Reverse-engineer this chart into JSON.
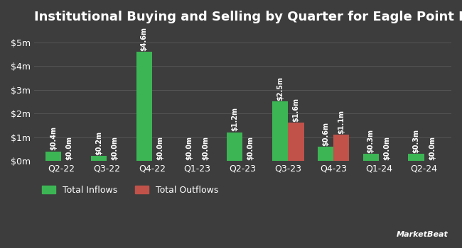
{
  "title": "Institutional Buying and Selling by Quarter for Eagle Point Income",
  "quarters": [
    "Q2-22",
    "Q3-22",
    "Q4-22",
    "Q1-23",
    "Q2-23",
    "Q3-23",
    "Q4-23",
    "Q1-24",
    "Q2-24"
  ],
  "inflows": [
    0.4,
    0.2,
    4.6,
    0.0,
    1.2,
    2.5,
    0.6,
    0.3,
    0.3
  ],
  "outflows": [
    0.0,
    0.0,
    0.0,
    0.0,
    0.0,
    1.6,
    1.1,
    0.0,
    0.0
  ],
  "inflow_labels": [
    "$0.4m",
    "$0.2m",
    "$4.6m",
    "$0.0m",
    "$1.2m",
    "$2.5m",
    "$0.6m",
    "$0.3m",
    "$0.3m"
  ],
  "outflow_labels": [
    "$0.0m",
    "$0.0m",
    "$0.0m",
    "$0.0m",
    "$0.0m",
    "$1.6m",
    "$1.1m",
    "$0.0m",
    "$0.0m"
  ],
  "inflow_color": "#3cb554",
  "outflow_color": "#c0524a",
  "background_color": "#3d3d3d",
  "text_color": "#ffffff",
  "grid_color": "#555555",
  "ylabel_ticks": [
    "$0m",
    "$1m",
    "$2m",
    "$3m",
    "$4m",
    "$5m"
  ],
  "ytick_values": [
    0,
    1,
    2,
    3,
    4,
    5
  ],
  "ylim": [
    0,
    5.5
  ],
  "bar_width": 0.35,
  "title_fontsize": 13,
  "tick_fontsize": 9,
  "label_fontsize": 7,
  "legend_fontsize": 9
}
